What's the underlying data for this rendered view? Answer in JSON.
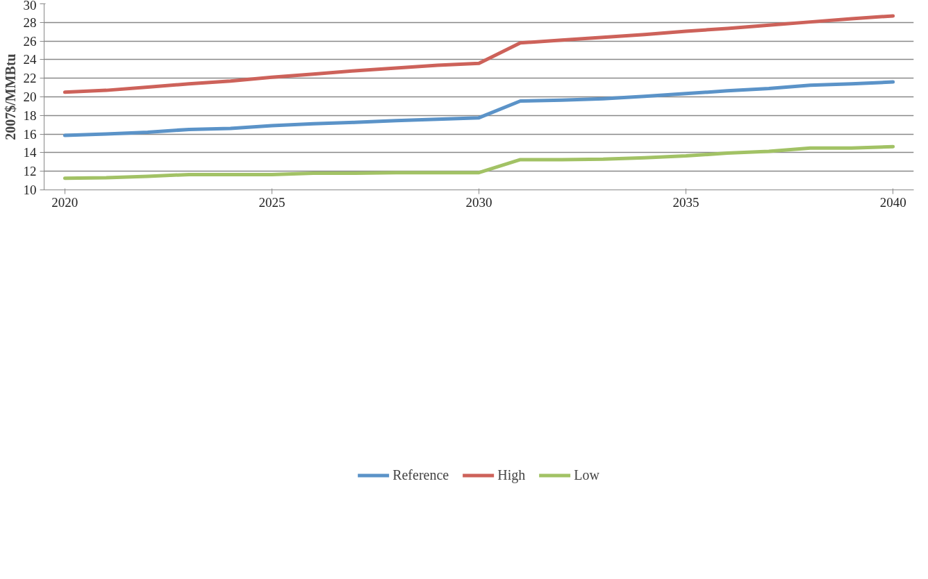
{
  "chart_data": {
    "type": "line",
    "ylabel": "2007$/MMBtu",
    "x": [
      2020,
      2021,
      2022,
      2023,
      2024,
      2025,
      2026,
      2027,
      2028,
      2029,
      2030,
      2031,
      2032,
      2033,
      2034,
      2035,
      2036,
      2037,
      2038,
      2039,
      2040
    ],
    "series": [
      {
        "name": "Reference",
        "color": "#5b93c8",
        "values": [
          15.85,
          16.0,
          16.2,
          16.5,
          16.6,
          16.9,
          17.1,
          17.25,
          17.45,
          17.6,
          17.75,
          19.55,
          19.65,
          19.8,
          20.05,
          20.35,
          20.65,
          20.9,
          21.25,
          21.4,
          21.6
        ]
      },
      {
        "name": "High",
        "color": "#cd625a",
        "values": [
          20.5,
          20.7,
          21.05,
          21.4,
          21.7,
          22.1,
          22.45,
          22.8,
          23.1,
          23.4,
          23.6,
          25.8,
          26.1,
          26.4,
          26.7,
          27.05,
          27.35,
          27.7,
          28.05,
          28.4,
          28.7
        ]
      },
      {
        "name": "Low",
        "color": "#a2c265",
        "values": [
          11.25,
          11.3,
          11.45,
          11.65,
          11.65,
          11.65,
          11.8,
          11.8,
          11.85,
          11.85,
          11.85,
          13.25,
          13.25,
          13.3,
          13.45,
          13.65,
          13.95,
          14.15,
          14.5,
          14.5,
          14.65
        ]
      }
    ],
    "xlim": [
      2019.5,
      2040.5
    ],
    "xticks": [
      2020,
      2025,
      2030,
      2035,
      2040
    ],
    "ylim": [
      10,
      30
    ],
    "yticks": [
      10,
      12,
      14,
      16,
      18,
      20,
      22,
      24,
      26,
      28,
      30
    ],
    "grid": "y",
    "legend": "bottom",
    "marker": "none",
    "line_style": "solid"
  }
}
